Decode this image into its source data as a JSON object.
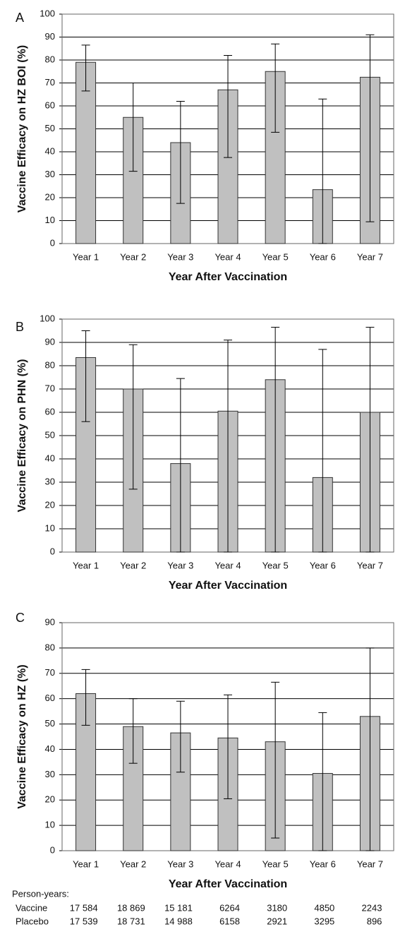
{
  "chart_data": [
    {
      "type": "bar",
      "panel": "A",
      "ylabel": "Vaccine Efficacy on HZ BOI (%)",
      "xlabel": "Year After Vaccination",
      "categories": [
        "Year 1",
        "Year 2",
        "Year 3",
        "Year 4",
        "Year 5",
        "Year 6",
        "Year 7"
      ],
      "values": [
        79,
        55,
        44,
        67,
        75,
        23.5,
        72.5
      ],
      "error_low": [
        66.5,
        31.5,
        17.5,
        37.5,
        48.5,
        0,
        9.5
      ],
      "error_high": [
        86.5,
        70,
        62,
        82,
        87,
        63,
        91
      ],
      "color": "#c0c0c0",
      "ylim": [
        0,
        100
      ],
      "yticks": [
        0,
        10,
        20,
        30,
        40,
        50,
        60,
        70,
        80,
        90,
        100
      ],
      "grid": true
    },
    {
      "type": "bar",
      "panel": "B",
      "ylabel": "Vaccine Efficacy on PHN (%)",
      "xlabel": "Year After Vaccination",
      "categories": [
        "Year 1",
        "Year 2",
        "Year 3",
        "Year 4",
        "Year 5",
        "Year 6",
        "Year 7"
      ],
      "values": [
        83.5,
        70,
        38,
        60.5,
        74,
        32,
        60
      ],
      "error_low": [
        56,
        27,
        0,
        0,
        0,
        0,
        0
      ],
      "error_high": [
        95,
        89,
        74.5,
        91,
        96.5,
        87,
        96.5
      ],
      "color": "#c0c0c0",
      "ylim": [
        0,
        100
      ],
      "yticks": [
        0,
        10,
        20,
        30,
        40,
        50,
        60,
        70,
        80,
        90,
        100
      ],
      "grid": true
    },
    {
      "type": "bar",
      "panel": "C",
      "ylabel": "Vaccine Efficacy on HZ (%)",
      "xlabel": "Year After Vaccination",
      "categories": [
        "Year 1",
        "Year 2",
        "Year 3",
        "Year 4",
        "Year 5",
        "Year 6",
        "Year 7"
      ],
      "values": [
        62,
        49,
        46.5,
        44.5,
        43,
        30.5,
        53
      ],
      "error_low": [
        49.5,
        34.5,
        31,
        20.5,
        5,
        0,
        0
      ],
      "error_high": [
        71.5,
        60,
        59,
        61.5,
        66.5,
        54.5,
        80
      ],
      "color": "#c0c0c0",
      "ylim": [
        0,
        90
      ],
      "yticks": [
        0,
        10,
        20,
        30,
        40,
        50,
        60,
        70,
        80,
        90
      ],
      "grid": true
    }
  ],
  "person_years": {
    "title": "Person-years:",
    "rows": [
      {
        "label": "Vaccine",
        "values": [
          "17 584",
          "18 869",
          "15 181",
          "6264",
          "3180",
          "4850",
          "2243"
        ]
      },
      {
        "label": "Placebo",
        "values": [
          "17 539",
          "18 731",
          "14 988",
          "6158",
          "2921",
          "3295",
          "896"
        ]
      }
    ]
  }
}
